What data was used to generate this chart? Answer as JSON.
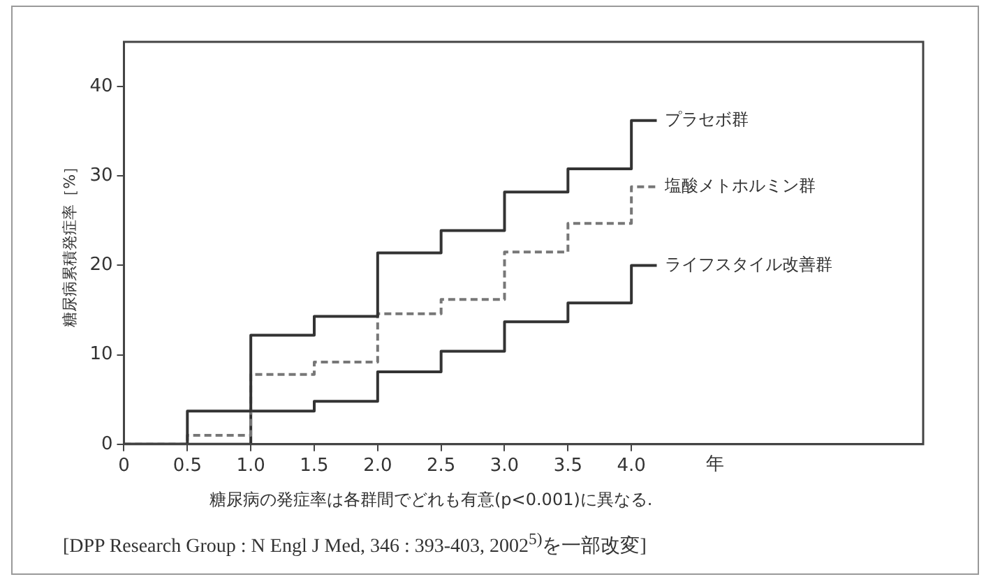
{
  "chart_data": {
    "type": "step",
    "ylabel": "糖尿病累積発症率［%］",
    "xlabel": "年",
    "annotations": [
      "糖尿病の発症率は各群間でどれも有意(p<0.001)に異なる.",
      "[DPP Research Group : N Engl J Med, 346 : 393-403, 2002$^{5)}$を一部改変]"
    ],
    "x": [
      0,
      0.5,
      1,
      1.5,
      2,
      2.5,
      3,
      3.5,
      4,
      4.2
    ],
    "series": [
      {
        "name": "プラセボ群",
        "color": "#333333",
        "values": [
          0,
          3.7,
          12.2,
          14.3,
          21.4,
          23.9,
          28.2,
          30.8,
          36.2,
          36.2
        ]
      },
      {
        "name": "塩酸メトホルミン群",
        "color": "#777777",
        "line_style": "dashed",
        "values": [
          0,
          1.0,
          7.8,
          9.2,
          14.6,
          16.2,
          21.5,
          24.7,
          28.8,
          28.8
        ]
      },
      {
        "name": "ライフスタイル改善群",
        "color": "#333333",
        "values": [
          0,
          0,
          3.7,
          4.8,
          8.1,
          10.4,
          13.7,
          15.8,
          20.0,
          20.0
        ]
      }
    ],
    "xlim": [
      0,
      6.3
    ],
    "ylim": [
      0,
      45
    ],
    "xticks": [
      0,
      0.5,
      {
        "value": 1,
        "label": "1.0"
      },
      1.5,
      {
        "value": 2,
        "label": "2.0"
      },
      2.5,
      {
        "value": 3,
        "label": "3.0"
      },
      3.5,
      {
        "value": 4,
        "label": "4.0"
      }
    ],
    "yticks": [
      0,
      10,
      20,
      30,
      40
    ],
    "grid": false,
    "legend": false,
    "marker": "none"
  }
}
